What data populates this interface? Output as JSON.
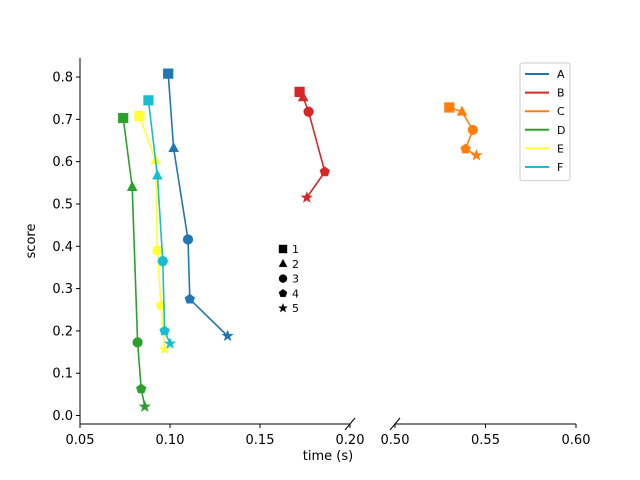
{
  "chart_data": {
    "type": "line",
    "title": "",
    "xlabel": "time (s)",
    "ylabel": "score",
    "broken_x_axis": true,
    "xlim_left": [
      0.05,
      0.2
    ],
    "xlim_right": [
      0.5,
      0.6
    ],
    "ylim": [
      -0.02,
      0.845
    ],
    "x_ticks_left": [
      "0.05",
      "0.10",
      "0.15",
      "0.20"
    ],
    "x_ticks_right": [
      "0.50",
      "0.55",
      "0.60"
    ],
    "y_ticks": [
      "0.0",
      "0.1",
      "0.2",
      "0.3",
      "0.4",
      "0.5",
      "0.6",
      "0.7",
      "0.8"
    ],
    "grid": false,
    "legend_position": "top-right",
    "marker_order": [
      "square",
      "triangle",
      "circle",
      "pentagon",
      "star"
    ],
    "shape_legend": [
      {
        "marker": "square",
        "label": "1"
      },
      {
        "marker": "triangle",
        "label": "2"
      },
      {
        "marker": "circle",
        "label": "3"
      },
      {
        "marker": "pentagon",
        "label": "4"
      },
      {
        "marker": "star",
        "label": "5"
      }
    ],
    "series": [
      {
        "name": "A",
        "color": "#1f77b4",
        "x": [
          0.099,
          0.102,
          0.11,
          0.111,
          0.132
        ],
        "y": [
          0.808,
          0.632,
          0.416,
          0.275,
          0.188
        ]
      },
      {
        "name": "B",
        "color": "#d62728",
        "x": [
          0.172,
          0.174,
          0.177,
          0.186,
          0.176
        ],
        "y": [
          0.765,
          0.752,
          0.718,
          0.576,
          0.515
        ]
      },
      {
        "name": "C",
        "color": "#ff7f0e",
        "x": [
          0.53,
          0.537,
          0.543,
          0.539,
          0.545
        ],
        "y": [
          0.728,
          0.718,
          0.675,
          0.63,
          0.615
        ]
      },
      {
        "name": "D",
        "color": "#2ca02c",
        "x": [
          0.074,
          0.079,
          0.082,
          0.084,
          0.086
        ],
        "y": [
          0.703,
          0.54,
          0.173,
          0.063,
          0.021
        ]
      },
      {
        "name": "E",
        "color": "#ffff33",
        "x": [
          0.083,
          0.092,
          0.093,
          0.095,
          0.097
        ],
        "y": [
          0.708,
          0.603,
          0.39,
          0.26,
          0.157
        ]
      },
      {
        "name": "F",
        "color": "#17becf",
        "x": [
          0.088,
          0.093,
          0.096,
          0.097,
          0.1
        ],
        "y": [
          0.745,
          0.567,
          0.365,
          0.2,
          0.17
        ]
      }
    ]
  }
}
